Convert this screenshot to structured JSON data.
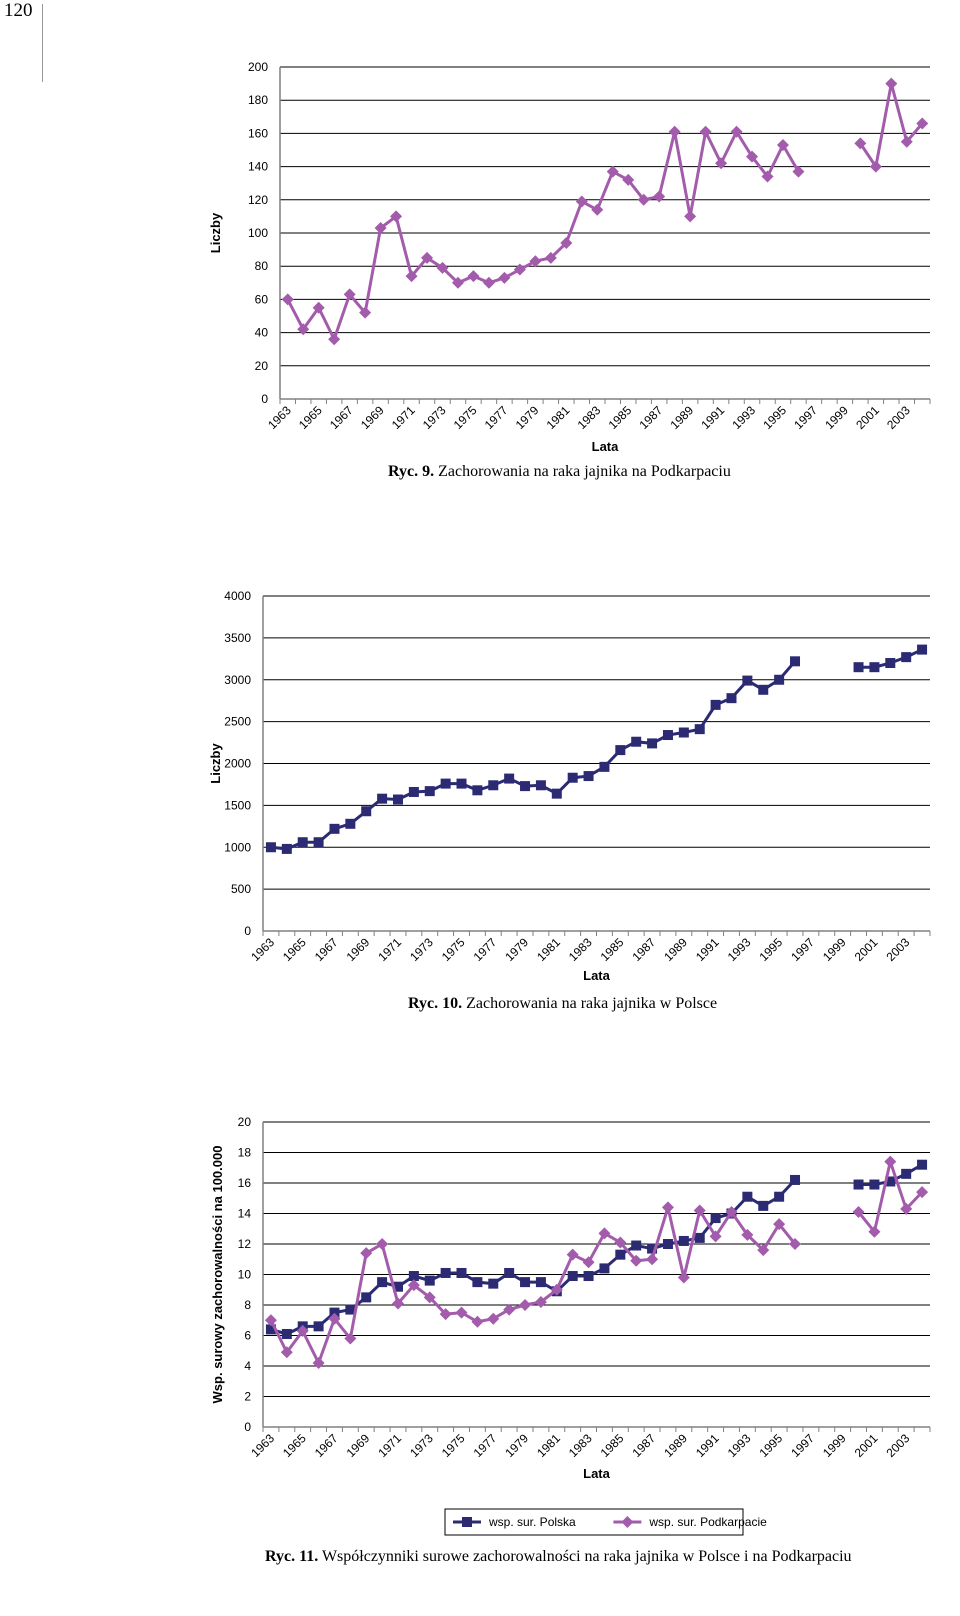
{
  "page_number": "120",
  "colors": {
    "polska": "#2b2a73",
    "podkarpacie": "#a35bab",
    "axis": "#808080"
  },
  "chart_data": [
    {
      "type": "line",
      "ylabel": "Liczby",
      "xlabel": "Lata",
      "ylim": [
        0,
        200
      ],
      "yticks": [
        "0",
        "20",
        "40",
        "60",
        "80",
        "100",
        "120",
        "140",
        "160",
        "180",
        "200"
      ],
      "xticks": [
        "1963",
        "1965",
        "1967",
        "1969",
        "1971",
        "1973",
        "1975",
        "1977",
        "1979",
        "1981",
        "1983",
        "1985",
        "1987",
        "1989",
        "1991",
        "1993",
        "1995",
        "1997",
        "1999",
        "2001",
        "2003"
      ],
      "grid": true,
      "series": [
        {
          "marker": "diamond",
          "color": "#a35bab",
          "x": [
            1963,
            1964,
            1965,
            1966,
            1967,
            1968,
            1969,
            1970,
            1971,
            1972,
            1973,
            1974,
            1975,
            1976,
            1977,
            1978,
            1979,
            1980,
            1981,
            1982,
            1983,
            1984,
            1985,
            1986,
            1987,
            1988,
            1989,
            1990,
            1991,
            1992,
            1993,
            1994,
            1995,
            1996,
            1997,
            1998,
            1999,
            2000,
            2001,
            2002,
            2003,
            2004
          ],
          "values": [
            60,
            42,
            55,
            36,
            63,
            52,
            103,
            110,
            74,
            85,
            79,
            70,
            74,
            70,
            73,
            78,
            83,
            85,
            94,
            119,
            114,
            137,
            132,
            120,
            122,
            161,
            110,
            161,
            142,
            161,
            146,
            134,
            153,
            137,
            null,
            null,
            null,
            154,
            140,
            190,
            155,
            166
          ]
        }
      ],
      "caption_prefix": "Ryc. 9.",
      "caption_text": "Zachorowania na raka jajnika na Podkarpaciu"
    },
    {
      "type": "line",
      "ylabel": "Liczby",
      "xlabel": "Lata",
      "ylim": [
        0,
        4000
      ],
      "yticks": [
        "0",
        "500",
        "1000",
        "1500",
        "2000",
        "2500",
        "3000",
        "3500",
        "4000"
      ],
      "xticks": [
        "1963",
        "1965",
        "1967",
        "1969",
        "1971",
        "1973",
        "1975",
        "1977",
        "1979",
        "1981",
        "1983",
        "1985",
        "1987",
        "1989",
        "1991",
        "1993",
        "1995",
        "1997",
        "1999",
        "2001",
        "2003"
      ],
      "grid": true,
      "series": [
        {
          "marker": "square",
          "color": "#2b2a73",
          "x": [
            1963,
            1964,
            1965,
            1966,
            1967,
            1968,
            1969,
            1970,
            1971,
            1972,
            1973,
            1974,
            1975,
            1976,
            1977,
            1978,
            1979,
            1980,
            1981,
            1982,
            1983,
            1984,
            1985,
            1986,
            1987,
            1988,
            1989,
            1990,
            1991,
            1992,
            1993,
            1994,
            1995,
            1996,
            1997,
            1998,
            1999,
            2000,
            2001,
            2002,
            2003,
            2004
          ],
          "values": [
            1000,
            980,
            1060,
            1060,
            1220,
            1280,
            1430,
            1580,
            1570,
            1660,
            1670,
            1760,
            1760,
            1680,
            1740,
            1820,
            1730,
            1740,
            1640,
            1830,
            1850,
            1960,
            2160,
            2260,
            2240,
            2340,
            2370,
            2410,
            2700,
            2780,
            2990,
            2880,
            3000,
            3220,
            null,
            null,
            null,
            3150,
            3150,
            3200,
            3270,
            3360
          ]
        }
      ],
      "caption_prefix": "Ryc. 10.",
      "caption_text": "Zachorowania na raka jajnika w Polsce"
    },
    {
      "type": "line",
      "ylabel": "Wsp. surowy zachorowalności na 100.000",
      "xlabel": "Lata",
      "ylim": [
        0,
        20
      ],
      "yticks": [
        "0",
        "2",
        "4",
        "6",
        "8",
        "10",
        "12",
        "14",
        "16",
        "18",
        "20"
      ],
      "xticks": [
        "1963",
        "1965",
        "1967",
        "1969",
        "1971",
        "1973",
        "1975",
        "1977",
        "1979",
        "1981",
        "1983",
        "1985",
        "1987",
        "1989",
        "1991",
        "1993",
        "1995",
        "1997",
        "1999",
        "2001",
        "2003"
      ],
      "grid": true,
      "legend_position": "bottom",
      "series": [
        {
          "name": "wsp. sur. Polska",
          "marker": "square",
          "color": "#2b2a73",
          "x": [
            1963,
            1964,
            1965,
            1966,
            1967,
            1968,
            1969,
            1970,
            1971,
            1972,
            1973,
            1974,
            1975,
            1976,
            1977,
            1978,
            1979,
            1980,
            1981,
            1982,
            1983,
            1984,
            1985,
            1986,
            1987,
            1988,
            1989,
            1990,
            1991,
            1992,
            1993,
            1994,
            1995,
            1996,
            1997,
            1998,
            1999,
            2000,
            2001,
            2002,
            2003,
            2004
          ],
          "values": [
            6.4,
            6.1,
            6.6,
            6.6,
            7.5,
            7.7,
            8.5,
            9.5,
            9.2,
            9.9,
            9.6,
            10.1,
            10.1,
            9.5,
            9.4,
            10.1,
            9.5,
            9.5,
            8.9,
            9.9,
            9.9,
            10.4,
            11.3,
            11.9,
            11.7,
            12.0,
            12.2,
            12.4,
            13.7,
            14.0,
            15.1,
            14.5,
            15.1,
            16.2,
            null,
            null,
            null,
            15.9,
            15.9,
            16.1,
            16.6,
            17.2
          ]
        },
        {
          "name": "wsp. sur. Podkarpacie",
          "marker": "diamond",
          "color": "#a35bab",
          "x": [
            1963,
            1964,
            1965,
            1966,
            1967,
            1968,
            1969,
            1970,
            1971,
            1972,
            1973,
            1974,
            1975,
            1976,
            1977,
            1978,
            1979,
            1980,
            1981,
            1982,
            1983,
            1984,
            1985,
            1986,
            1987,
            1988,
            1989,
            1990,
            1991,
            1992,
            1993,
            1994,
            1995,
            1996,
            1997,
            1998,
            1999,
            2000,
            2001,
            2002,
            2003,
            2004
          ],
          "values": [
            7.0,
            4.9,
            6.3,
            4.2,
            7.1,
            5.8,
            11.4,
            12.0,
            8.1,
            9.3,
            8.5,
            7.4,
            7.5,
            6.9,
            7.1,
            7.7,
            8.0,
            8.2,
            9.0,
            11.3,
            10.8,
            12.7,
            12.1,
            10.9,
            11.0,
            14.4,
            9.8,
            14.2,
            12.5,
            14.1,
            12.6,
            11.6,
            13.3,
            12.0,
            null,
            null,
            null,
            14.1,
            12.8,
            17.4,
            14.3,
            15.4
          ]
        }
      ],
      "caption_prefix": "Ryc. 11.",
      "caption_text": "Współczynniki surowe zachorowalności na raka jajnika w Polsce i na Podkarpaciu"
    }
  ]
}
